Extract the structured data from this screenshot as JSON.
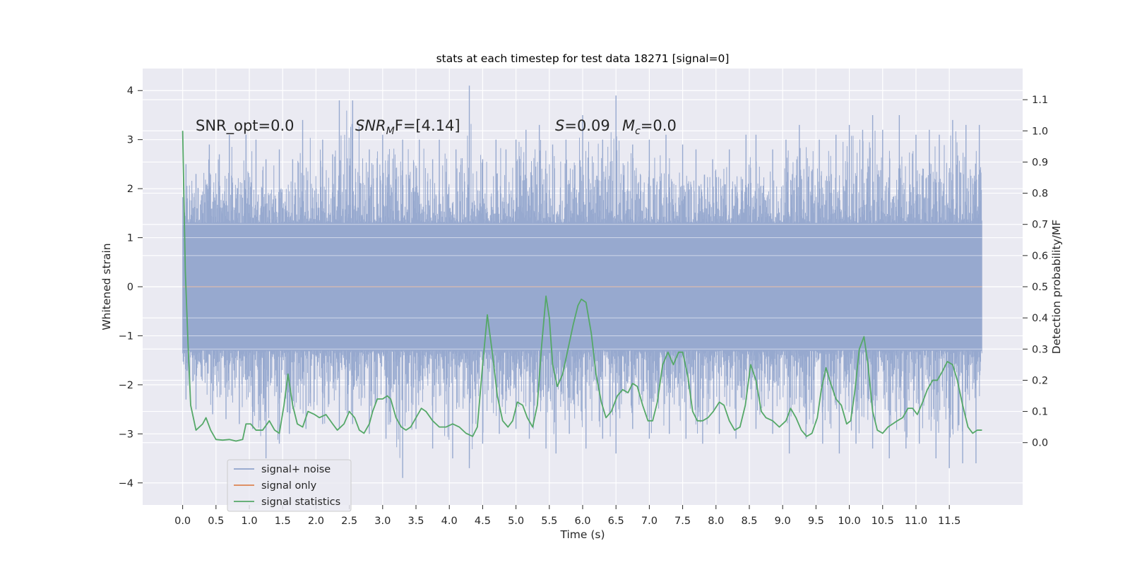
{
  "chart_data": {
    "type": "line",
    "title": "stats at each timestep for test data 18271 [signal=0]",
    "xlabel": "Time (s)",
    "ylabel": "Whitened strain",
    "ylabel_right": "Detection probability/MF",
    "xlim": [
      -0.6,
      12.6
    ],
    "ylim": [
      -4.45,
      4.45
    ],
    "ylim_right": [
      -0.2,
      1.2
    ],
    "grid": true,
    "legend_position": "lower left",
    "x_ticks": [
      "0.0",
      "0.5",
      "1.0",
      "1.5",
      "2.0",
      "2.5",
      "3.0",
      "3.5",
      "4.0",
      "4.5",
      "5.0",
      "5.5",
      "6.0",
      "6.5",
      "7.0",
      "7.5",
      "8.0",
      "8.5",
      "9.0",
      "9.5",
      "10.0",
      "10.5",
      "11.0",
      "11.5"
    ],
    "y_ticks": [
      "4",
      "3",
      "2",
      "1",
      "0",
      "−1",
      "−2",
      "−3",
      "−4"
    ],
    "y_ticks_right": [
      "1.1",
      "1.0",
      "0.9",
      "0.8",
      "0.7",
      "0.6",
      "0.5",
      "0.4",
      "0.3",
      "0.2",
      "0.1",
      "0.0"
    ],
    "annotations": {
      "snr_opt": "SNR_opt=0.0",
      "snr_mf": {
        "main": "SNR",
        "sub": "M",
        "rest": "F=[4.14]"
      },
      "s_value": {
        "main": "S",
        "rest": "=0.09"
      },
      "mc_value": {
        "main": "M",
        "sub": "c",
        "rest": "=0.0"
      }
    },
    "series": [
      {
        "name": "signal+ noise",
        "axis": "left",
        "color": "#8fa3cc",
        "x_range": [
          0.0,
          11.99
        ],
        "envelope_core": [
          -1.3,
          1.3
        ],
        "peaks_positive": [
          [
            0.05,
            2.5
          ],
          [
            0.2,
            2.3
          ],
          [
            0.4,
            2.9
          ],
          [
            0.55,
            2.7
          ],
          [
            0.7,
            3.1
          ],
          [
            0.95,
            3.1
          ],
          [
            1.1,
            3.0
          ],
          [
            1.25,
            2.6
          ],
          [
            1.45,
            2.8
          ],
          [
            1.65,
            2.6
          ],
          [
            1.8,
            3.4
          ],
          [
            2.1,
            3.0
          ],
          [
            2.25,
            2.7
          ],
          [
            2.35,
            3.8
          ],
          [
            2.55,
            3.8
          ],
          [
            2.8,
            2.8
          ],
          [
            3.0,
            3.1
          ],
          [
            3.3,
            3.0
          ],
          [
            3.55,
            3.0
          ],
          [
            3.75,
            2.6
          ],
          [
            3.85,
            3.0
          ],
          [
            4.1,
            2.8
          ],
          [
            4.3,
            4.1
          ],
          [
            4.5,
            2.6
          ],
          [
            4.7,
            3.0
          ],
          [
            4.85,
            2.8
          ],
          [
            5.0,
            3.0
          ],
          [
            5.15,
            3.2
          ],
          [
            5.35,
            3.3
          ],
          [
            5.55,
            2.9
          ],
          [
            5.75,
            3.0
          ],
          [
            6.0,
            3.5
          ],
          [
            6.3,
            3.0
          ],
          [
            6.5,
            3.9
          ],
          [
            6.75,
            2.9
          ],
          [
            7.0,
            3.0
          ],
          [
            7.25,
            3.1
          ],
          [
            7.5,
            2.9
          ],
          [
            7.7,
            2.8
          ],
          [
            7.95,
            2.6
          ],
          [
            8.2,
            2.8
          ],
          [
            8.45,
            3.1
          ],
          [
            8.6,
            3.1
          ],
          [
            8.85,
            2.8
          ],
          [
            9.05,
            3.0
          ],
          [
            9.25,
            3.3
          ],
          [
            9.55,
            3.0
          ],
          [
            9.8,
            3.1
          ],
          [
            10.0,
            3.3
          ],
          [
            10.2,
            3.2
          ],
          [
            10.35,
            3.5
          ],
          [
            10.5,
            3.2
          ],
          [
            10.75,
            3.5
          ],
          [
            11.0,
            3.1
          ],
          [
            11.2,
            3.2
          ],
          [
            11.35,
            3.1
          ],
          [
            11.55,
            3.4
          ],
          [
            11.75,
            3.3
          ],
          [
            11.95,
            3.3
          ]
        ],
        "peaks_negative": [
          [
            0.05,
            -2.3
          ],
          [
            0.2,
            -2.5
          ],
          [
            0.45,
            -2.6
          ],
          [
            0.65,
            -2.7
          ],
          [
            0.85,
            -2.8
          ],
          [
            1.05,
            -2.9
          ],
          [
            1.25,
            -3.5
          ],
          [
            1.45,
            -3.2
          ],
          [
            1.6,
            -3.0
          ],
          [
            1.85,
            -2.9
          ],
          [
            2.1,
            -2.8
          ],
          [
            2.35,
            -2.9
          ],
          [
            2.55,
            -2.8
          ],
          [
            2.8,
            -3.0
          ],
          [
            3.05,
            -3.1
          ],
          [
            3.3,
            -3.9
          ],
          [
            3.5,
            -2.9
          ],
          [
            3.75,
            -3.3
          ],
          [
            4.05,
            -3.5
          ],
          [
            4.3,
            -3.7
          ],
          [
            4.5,
            -3.2
          ],
          [
            4.75,
            -3.0
          ],
          [
            5.0,
            -2.9
          ],
          [
            5.2,
            -3.1
          ],
          [
            5.45,
            -3.3
          ],
          [
            5.6,
            -3.4
          ],
          [
            5.8,
            -3.0
          ],
          [
            6.05,
            -3.3
          ],
          [
            6.3,
            -3.1
          ],
          [
            6.5,
            -3.4
          ],
          [
            6.75,
            -2.9
          ],
          [
            7.0,
            -3.1
          ],
          [
            7.3,
            -3.0
          ],
          [
            7.55,
            -3.1
          ],
          [
            7.8,
            -3.2
          ],
          [
            8.05,
            -3.0
          ],
          [
            8.3,
            -3.1
          ],
          [
            8.6,
            -2.9
          ],
          [
            8.85,
            -3.0
          ],
          [
            9.1,
            -3.4
          ],
          [
            9.35,
            -3.1
          ],
          [
            9.6,
            -3.2
          ],
          [
            9.85,
            -3.4
          ],
          [
            10.1,
            -3.2
          ],
          [
            10.35,
            -3.3
          ],
          [
            10.6,
            -3.5
          ],
          [
            10.85,
            -3.3
          ],
          [
            11.05,
            -3.2
          ],
          [
            11.3,
            -3.5
          ],
          [
            11.5,
            -3.7
          ],
          [
            11.7,
            -3.6
          ],
          [
            11.9,
            -3.6
          ]
        ]
      },
      {
        "name": "signal only",
        "axis": "left",
        "color": "#dd8452",
        "points": [
          [
            0.0,
            0.0
          ],
          [
            11.99,
            0.0
          ]
        ]
      },
      {
        "name": "signal statistics",
        "axis": "right",
        "color": "#55a868",
        "points": [
          [
            0.0,
            1.0
          ],
          [
            0.04,
            0.55
          ],
          [
            0.08,
            0.32
          ],
          [
            0.12,
            0.12
          ],
          [
            0.2,
            0.04
          ],
          [
            0.3,
            0.06
          ],
          [
            0.35,
            0.08
          ],
          [
            0.42,
            0.04
          ],
          [
            0.5,
            0.01
          ],
          [
            0.6,
            0.008
          ],
          [
            0.7,
            0.01
          ],
          [
            0.8,
            0.005
          ],
          [
            0.9,
            0.01
          ],
          [
            0.95,
            0.06
          ],
          [
            1.02,
            0.06
          ],
          [
            1.1,
            0.04
          ],
          [
            1.2,
            0.04
          ],
          [
            1.3,
            0.07
          ],
          [
            1.38,
            0.04
          ],
          [
            1.45,
            0.03
          ],
          [
            1.52,
            0.12
          ],
          [
            1.58,
            0.22
          ],
          [
            1.65,
            0.12
          ],
          [
            1.72,
            0.06
          ],
          [
            1.8,
            0.05
          ],
          [
            1.88,
            0.1
          ],
          [
            1.98,
            0.09
          ],
          [
            2.05,
            0.08
          ],
          [
            2.15,
            0.09
          ],
          [
            2.25,
            0.06
          ],
          [
            2.32,
            0.04
          ],
          [
            2.42,
            0.06
          ],
          [
            2.5,
            0.1
          ],
          [
            2.58,
            0.08
          ],
          [
            2.65,
            0.04
          ],
          [
            2.72,
            0.03
          ],
          [
            2.8,
            0.06
          ],
          [
            2.85,
            0.1
          ],
          [
            2.92,
            0.14
          ],
          [
            3.0,
            0.14
          ],
          [
            3.07,
            0.15
          ],
          [
            3.12,
            0.14
          ],
          [
            3.2,
            0.08
          ],
          [
            3.28,
            0.05
          ],
          [
            3.35,
            0.04
          ],
          [
            3.42,
            0.05
          ],
          [
            3.5,
            0.08
          ],
          [
            3.58,
            0.11
          ],
          [
            3.65,
            0.1
          ],
          [
            3.75,
            0.07
          ],
          [
            3.85,
            0.05
          ],
          [
            3.95,
            0.05
          ],
          [
            4.05,
            0.06
          ],
          [
            4.15,
            0.05
          ],
          [
            4.25,
            0.03
          ],
          [
            4.35,
            0.02
          ],
          [
            4.42,
            0.05
          ],
          [
            4.5,
            0.25
          ],
          [
            4.57,
            0.41
          ],
          [
            4.65,
            0.28
          ],
          [
            4.72,
            0.15
          ],
          [
            4.8,
            0.07
          ],
          [
            4.88,
            0.05
          ],
          [
            4.95,
            0.07
          ],
          [
            5.02,
            0.13
          ],
          [
            5.1,
            0.12
          ],
          [
            5.17,
            0.08
          ],
          [
            5.25,
            0.05
          ],
          [
            5.32,
            0.12
          ],
          [
            5.38,
            0.3
          ],
          [
            5.45,
            0.47
          ],
          [
            5.5,
            0.4
          ],
          [
            5.55,
            0.25
          ],
          [
            5.62,
            0.18
          ],
          [
            5.7,
            0.22
          ],
          [
            5.78,
            0.3
          ],
          [
            5.86,
            0.38
          ],
          [
            5.93,
            0.44
          ],
          [
            5.98,
            0.46
          ],
          [
            6.05,
            0.45
          ],
          [
            6.13,
            0.35
          ],
          [
            6.2,
            0.22
          ],
          [
            6.28,
            0.13
          ],
          [
            6.35,
            0.08
          ],
          [
            6.43,
            0.1
          ],
          [
            6.52,
            0.15
          ],
          [
            6.6,
            0.17
          ],
          [
            6.68,
            0.16
          ],
          [
            6.75,
            0.19
          ],
          [
            6.82,
            0.18
          ],
          [
            6.9,
            0.12
          ],
          [
            6.98,
            0.07
          ],
          [
            7.05,
            0.07
          ],
          [
            7.12,
            0.13
          ],
          [
            7.2,
            0.25
          ],
          [
            7.28,
            0.29
          ],
          [
            7.36,
            0.25
          ],
          [
            7.44,
            0.29
          ],
          [
            7.5,
            0.29
          ],
          [
            7.58,
            0.21
          ],
          [
            7.65,
            0.1
          ],
          [
            7.72,
            0.07
          ],
          [
            7.8,
            0.07
          ],
          [
            7.88,
            0.08
          ],
          [
            7.96,
            0.1
          ],
          [
            8.05,
            0.13
          ],
          [
            8.12,
            0.12
          ],
          [
            8.2,
            0.07
          ],
          [
            8.28,
            0.04
          ],
          [
            8.36,
            0.05
          ],
          [
            8.44,
            0.12
          ],
          [
            8.52,
            0.25
          ],
          [
            8.6,
            0.2
          ],
          [
            8.68,
            0.1
          ],
          [
            8.75,
            0.08
          ],
          [
            8.85,
            0.07
          ],
          [
            8.95,
            0.05
          ],
          [
            9.05,
            0.07
          ],
          [
            9.12,
            0.11
          ],
          [
            9.2,
            0.08
          ],
          [
            9.28,
            0.04
          ],
          [
            9.36,
            0.02
          ],
          [
            9.44,
            0.03
          ],
          [
            9.52,
            0.08
          ],
          [
            9.58,
            0.17
          ],
          [
            9.65,
            0.24
          ],
          [
            9.72,
            0.19
          ],
          [
            9.8,
            0.14
          ],
          [
            9.88,
            0.12
          ],
          [
            9.96,
            0.06
          ],
          [
            10.02,
            0.07
          ],
          [
            10.08,
            0.16
          ],
          [
            10.15,
            0.3
          ],
          [
            10.22,
            0.34
          ],
          [
            10.28,
            0.25
          ],
          [
            10.35,
            0.1
          ],
          [
            10.42,
            0.04
          ],
          [
            10.5,
            0.03
          ],
          [
            10.58,
            0.05
          ],
          [
            10.65,
            0.06
          ],
          [
            10.72,
            0.07
          ],
          [
            10.8,
            0.08
          ],
          [
            10.88,
            0.11
          ],
          [
            10.95,
            0.11
          ],
          [
            11.02,
            0.09
          ],
          [
            11.1,
            0.13
          ],
          [
            11.17,
            0.17
          ],
          [
            11.25,
            0.2
          ],
          [
            11.32,
            0.2
          ],
          [
            11.4,
            0.23
          ],
          [
            11.47,
            0.26
          ],
          [
            11.55,
            0.25
          ],
          [
            11.62,
            0.2
          ],
          [
            11.7,
            0.12
          ],
          [
            11.78,
            0.05
          ],
          [
            11.85,
            0.03
          ],
          [
            11.92,
            0.04
          ],
          [
            11.99,
            0.04
          ]
        ]
      }
    ],
    "colors": {
      "plot_background": "#eaeaf2",
      "grid": "#ffffff",
      "noise_band": "#97a9cf"
    }
  }
}
